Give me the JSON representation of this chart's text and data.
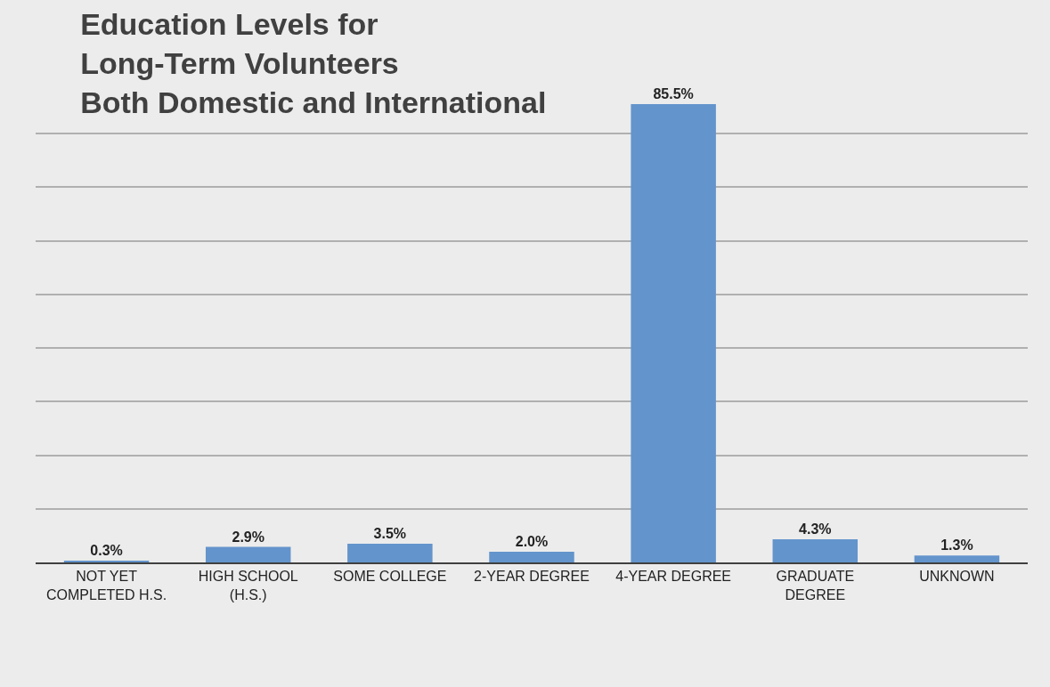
{
  "chart_data": {
    "type": "bar",
    "title": "Education Levels for\nLong-Term Volunteers\nBoth Domestic and International",
    "categories": [
      "NOT YET COMPLETED H.S.",
      "HIGH SCHOOL (H.S.)",
      "SOME COLLEGE",
      "2-YEAR DEGREE",
      "4-YEAR DEGREE",
      "GRADUATE DEGREE",
      "UNKNOWN"
    ],
    "values": [
      0.3,
      2.9,
      3.5,
      2.0,
      85.5,
      4.3,
      1.3
    ],
    "value_labels": [
      "0.3%",
      "2.9%",
      "3.5%",
      "2.0%",
      "85.5%",
      "4.3%",
      "1.3%"
    ],
    "color": "#6394cc",
    "grid": "y",
    "tick_labels": "x"
  }
}
